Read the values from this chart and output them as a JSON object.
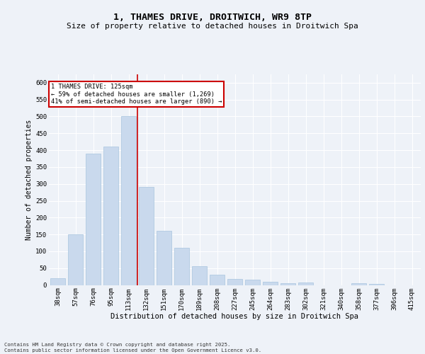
{
  "title_line1": "1, THAMES DRIVE, DROITWICH, WR9 8TP",
  "title_line2": "Size of property relative to detached houses in Droitwich Spa",
  "xlabel": "Distribution of detached houses by size in Droitwich Spa",
  "ylabel": "Number of detached properties",
  "categories": [
    "38sqm",
    "57sqm",
    "76sqm",
    "95sqm",
    "113sqm",
    "132sqm",
    "151sqm",
    "170sqm",
    "189sqm",
    "208sqm",
    "227sqm",
    "245sqm",
    "264sqm",
    "283sqm",
    "302sqm",
    "321sqm",
    "340sqm",
    "358sqm",
    "377sqm",
    "396sqm",
    "415sqm"
  ],
  "values": [
    20,
    150,
    390,
    410,
    500,
    290,
    160,
    110,
    55,
    30,
    17,
    15,
    10,
    5,
    7,
    0,
    0,
    5,
    3,
    0,
    0
  ],
  "bar_color": "#c9d9ed",
  "bar_edgecolor": "#a8c4de",
  "vline_x_index": 4.5,
  "vline_color": "#cc0000",
  "ylim": [
    0,
    625
  ],
  "yticks": [
    0,
    50,
    100,
    150,
    200,
    250,
    300,
    350,
    400,
    450,
    500,
    550,
    600
  ],
  "annotation_text": "1 THAMES DRIVE: 125sqm\n← 59% of detached houses are smaller (1,269)\n41% of semi-detached houses are larger (890) →",
  "annotation_box_color": "#ffffff",
  "annotation_box_edgecolor": "#cc0000",
  "background_color": "#eef2f8",
  "grid_color": "#ffffff",
  "footer_text": "Contains HM Land Registry data © Crown copyright and database right 2025.\nContains public sector information licensed under the Open Government Licence v3.0.",
  "title_fontsize": 9.5,
  "subtitle_fontsize": 8,
  "tick_fontsize": 6.5,
  "xlabel_fontsize": 7.5,
  "ylabel_fontsize": 7
}
